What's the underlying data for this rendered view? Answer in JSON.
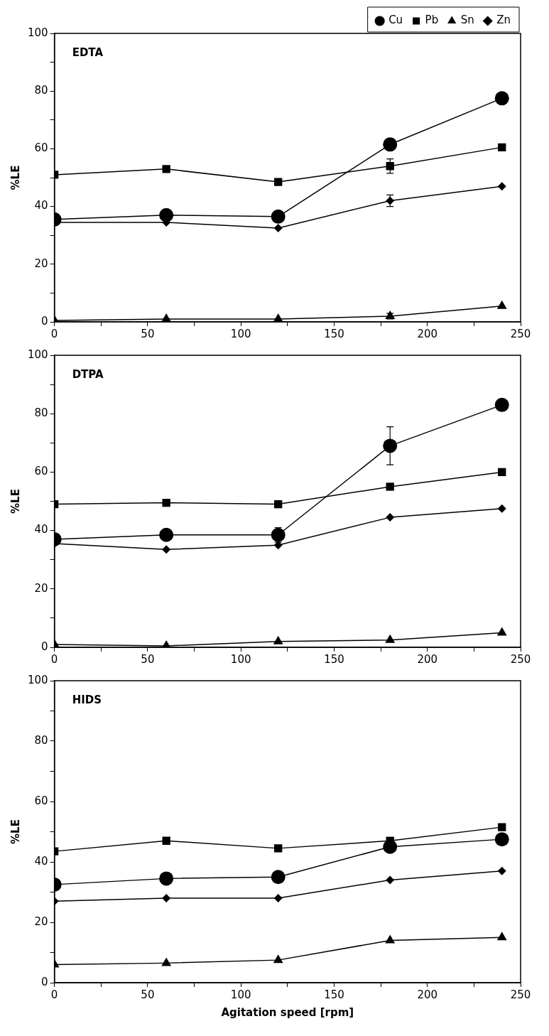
{
  "chart_data": [
    {
      "type": "line",
      "title": "EDTA",
      "ylabel": "%LE",
      "x": [
        0,
        60,
        120,
        180,
        240
      ],
      "xlim": [
        0,
        250
      ],
      "xticks": [
        0,
        {
          "value": 25,
          "label": null
        },
        50,
        {
          "value": 75,
          "label": null
        },
        100,
        {
          "value": 125,
          "label": null
        },
        150,
        {
          "value": 175,
          "label": null
        },
        200,
        {
          "value": 225,
          "label": null
        },
        250
      ],
      "ylim": [
        0,
        100
      ],
      "yticks": [
        0,
        {
          "value": 10,
          "label": null
        },
        20,
        {
          "value": 30,
          "label": null
        },
        40,
        {
          "value": 50,
          "label": null
        },
        60,
        {
          "value": 70,
          "label": null
        },
        80,
        {
          "value": 90,
          "label": null
        },
        100
      ],
      "grid": false,
      "legend": "top right",
      "line_style": "solid",
      "series": [
        {
          "name": "Cu",
          "color": "#000000",
          "marker": "circle",
          "values": [
            35.5,
            37,
            36.5,
            61.5,
            77.5
          ],
          "errors": [
            null,
            null,
            null,
            2,
            null
          ]
        },
        {
          "name": "Pb",
          "color": "#000000",
          "marker": "square",
          "values": [
            51,
            53,
            48.5,
            54,
            60.5
          ],
          "errors": [
            null,
            null,
            null,
            2.5,
            null
          ]
        },
        {
          "name": "Sn",
          "color": "#000000",
          "marker": "triangle",
          "values": [
            0.5,
            1,
            1,
            2,
            5.5
          ],
          "errors": [
            null,
            null,
            null,
            1,
            null
          ]
        },
        {
          "name": "Zn",
          "color": "#000000",
          "marker": "diamond",
          "values": [
            34.5,
            34.5,
            32.5,
            42,
            47
          ],
          "errors": [
            null,
            null,
            null,
            2,
            null
          ]
        }
      ]
    },
    {
      "type": "line",
      "title": "DTPA",
      "ylabel": "%LE",
      "x": [
        0,
        60,
        120,
        180,
        240
      ],
      "xlim": [
        0,
        250
      ],
      "xticks": [
        0,
        {
          "value": 25,
          "label": null
        },
        50,
        {
          "value": 75,
          "label": null
        },
        100,
        {
          "value": 125,
          "label": null
        },
        150,
        {
          "value": 175,
          "label": null
        },
        200,
        {
          "value": 225,
          "label": null
        },
        250
      ],
      "ylim": [
        0,
        100
      ],
      "yticks": [
        0,
        {
          "value": 10,
          "label": null
        },
        20,
        {
          "value": 30,
          "label": null
        },
        40,
        {
          "value": 50,
          "label": null
        },
        60,
        {
          "value": 70,
          "label": null
        },
        80,
        {
          "value": 90,
          "label": null
        },
        100
      ],
      "grid": false,
      "line_style": "solid",
      "series": [
        {
          "color": "#000000",
          "marker": "circle",
          "values": [
            37,
            38.5,
            38.5,
            69,
            83
          ],
          "errors": [
            null,
            null,
            2.5,
            6.5,
            null
          ]
        },
        {
          "color": "#000000",
          "marker": "square",
          "values": [
            49,
            49.5,
            49,
            55,
            60
          ]
        },
        {
          "color": "#000000",
          "marker": "triangle",
          "values": [
            1,
            0.5,
            2,
            2.5,
            5
          ]
        },
        {
          "color": "#000000",
          "marker": "diamond",
          "values": [
            35.5,
            33.5,
            35,
            44.5,
            47.5
          ]
        }
      ]
    },
    {
      "type": "line",
      "title": "HIDS",
      "xlabel": "Agitation speed [rpm]",
      "ylabel": "%LE",
      "x": [
        0,
        60,
        120,
        180,
        240
      ],
      "xlim": [
        0,
        250
      ],
      "xticks": [
        0,
        {
          "value": 25,
          "label": null
        },
        50,
        {
          "value": 75,
          "label": null
        },
        100,
        {
          "value": 125,
          "label": null
        },
        150,
        {
          "value": 175,
          "label": null
        },
        200,
        {
          "value": 225,
          "label": null
        },
        250
      ],
      "ylim": [
        0,
        100
      ],
      "yticks": [
        0,
        {
          "value": 10,
          "label": null
        },
        20,
        {
          "value": 30,
          "label": null
        },
        40,
        {
          "value": 50,
          "label": null
        },
        60,
        {
          "value": 70,
          "label": null
        },
        80,
        {
          "value": 90,
          "label": null
        },
        100
      ],
      "grid": false,
      "line_style": "solid",
      "series": [
        {
          "color": "#000000",
          "marker": "circle",
          "values": [
            32.5,
            34.5,
            35,
            45,
            47.5
          ]
        },
        {
          "color": "#000000",
          "marker": "square",
          "values": [
            43.5,
            47,
            44.5,
            47,
            51.5
          ]
        },
        {
          "color": "#000000",
          "marker": "triangle",
          "values": [
            6,
            6.5,
            7.5,
            14,
            15
          ]
        },
        {
          "color": "#000000",
          "marker": "diamond",
          "values": [
            27,
            28,
            28,
            34,
            37
          ]
        }
      ]
    }
  ]
}
